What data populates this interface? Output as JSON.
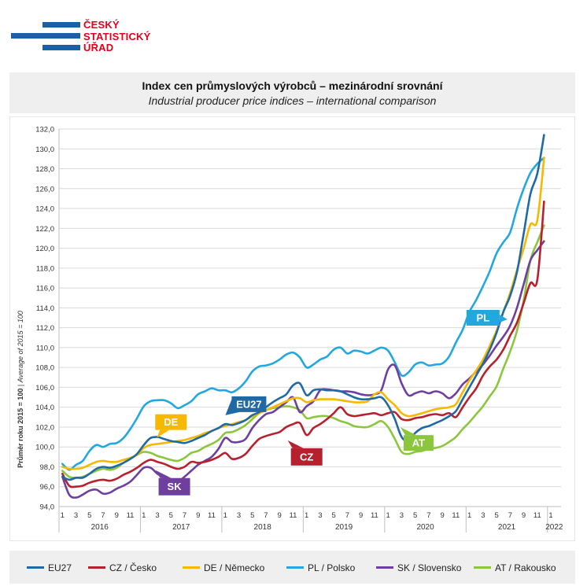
{
  "logo": {
    "line1": "ČESKÝ",
    "line2": "STATISTICKÝ",
    "line3": "ÚŘAD",
    "color_text": "#e2001a",
    "color_bars": "#1b5fa5"
  },
  "chart_data": {
    "type": "line",
    "title": "Index cen průmyslových výrobců – mezinárodní srovnání",
    "subtitle": "Industrial producer price indices – international comparison",
    "ylabel": "Průměr roku 2015 = 100",
    "ylabel_en": "Average of 2015 = 100",
    "ylabel_sep": " | ",
    "ylim": [
      94,
      132
    ],
    "yticks": [
      94,
      96,
      98,
      100,
      102,
      104,
      106,
      108,
      110,
      112,
      114,
      116,
      118,
      120,
      122,
      124,
      126,
      128,
      130,
      132
    ],
    "yticks_labels": [
      "94,0",
      "96,0",
      "98,0",
      "100,0",
      "102,0",
      "104,0",
      "106,0",
      "108,0",
      "110,0",
      "112,0",
      "114,0",
      "116,0",
      "118,0",
      "120,0",
      "122,0",
      "124,0",
      "126,0",
      "128,0",
      "130,0",
      "132,0"
    ],
    "month_ticks": [
      "1",
      "3",
      "5",
      "7",
      "9",
      "11"
    ],
    "years": [
      "2016",
      "2017",
      "2018",
      "2019",
      "2020",
      "2021",
      "2022"
    ],
    "x_start": "2016-01",
    "grid": "horizontal",
    "legend_position": "bottom",
    "series": [
      {
        "name": "EU27",
        "legend": "EU27",
        "color": "#1f6aa5",
        "values": [
          97.0,
          96.7,
          96.9,
          96.9,
          97.3,
          97.8,
          98.0,
          97.9,
          98.1,
          98.4,
          98.8,
          99.3,
          100.2,
          100.9,
          101.0,
          100.8,
          100.6,
          100.5,
          100.4,
          100.6,
          100.9,
          101.2,
          101.6,
          101.9,
          102.3,
          102.2,
          102.4,
          102.7,
          103.2,
          103.5,
          104.0,
          104.5,
          104.9,
          105.3,
          106.2,
          106.4,
          105.2,
          105.7,
          105.8,
          105.7,
          105.7,
          105.6,
          105.3,
          105.0,
          104.8,
          104.8,
          104.9,
          105.0,
          104.2,
          102.8,
          101.0,
          100.6,
          101.4,
          101.9,
          102.1,
          102.4,
          102.7,
          103.1,
          103.6,
          104.8,
          106.0,
          107.2,
          108.4,
          109.8,
          111.5,
          113.6,
          115.2,
          117.6,
          121.5,
          125.5,
          127.5,
          131.4
        ]
      },
      {
        "name": "CZ / Česko",
        "legend": "CZ / Česko",
        "color": "#b7212d",
        "values": [
          97.3,
          96.1,
          96.0,
          96.1,
          96.4,
          96.6,
          96.7,
          96.6,
          96.8,
          97.2,
          97.5,
          97.9,
          98.4,
          98.7,
          98.5,
          98.3,
          98.0,
          97.8,
          98.0,
          98.5,
          98.4,
          98.5,
          98.7,
          99.0,
          99.4,
          98.8,
          98.9,
          99.3,
          100.1,
          100.8,
          101.1,
          101.3,
          101.5,
          102.0,
          102.3,
          102.4,
          101.2,
          101.9,
          102.3,
          102.8,
          103.4,
          104.0,
          103.3,
          103.1,
          103.2,
          103.3,
          103.4,
          103.2,
          103.4,
          103.5,
          102.8,
          102.7,
          102.9,
          103.0,
          103.2,
          103.3,
          103.2,
          103.4,
          103.0,
          104.0,
          105.0,
          105.9,
          107.2,
          108.1,
          108.8,
          109.8,
          111.2,
          112.5,
          114.5,
          116.5,
          116.8,
          124.7
        ]
      },
      {
        "name": "DE / Německo",
        "legend": "DE / Německo",
        "color": "#f7b900",
        "values": [
          98.0,
          97.8,
          97.8,
          97.9,
          98.2,
          98.5,
          98.6,
          98.5,
          98.5,
          98.7,
          98.9,
          99.2,
          99.9,
          100.2,
          100.3,
          100.4,
          100.5,
          100.6,
          100.7,
          100.9,
          101.1,
          101.4,
          101.6,
          101.9,
          102.1,
          102.3,
          102.5,
          102.7,
          103.1,
          103.4,
          103.7,
          104.0,
          104.3,
          104.6,
          104.9,
          104.9,
          104.5,
          104.7,
          104.8,
          104.8,
          104.8,
          104.7,
          104.6,
          104.5,
          104.5,
          104.6,
          105.3,
          105.5,
          104.8,
          104.2,
          103.4,
          103.1,
          103.2,
          103.4,
          103.6,
          103.8,
          103.9,
          104.0,
          104.3,
          105.5,
          106.7,
          107.7,
          108.8,
          110.2,
          111.7,
          113.6,
          115.5,
          117.8,
          120.0,
          122.4,
          122.8,
          129.1
        ]
      },
      {
        "name": "PL / Polsko",
        "legend": "PL / Polsko",
        "color": "#22a8de",
        "values": [
          98.3,
          97.7,
          98.2,
          98.6,
          99.6,
          100.2,
          100.0,
          100.3,
          100.4,
          100.9,
          101.8,
          102.9,
          104.1,
          104.6,
          104.7,
          104.7,
          104.4,
          103.9,
          104.2,
          104.6,
          105.3,
          105.6,
          105.9,
          105.7,
          105.7,
          105.5,
          105.9,
          106.6,
          107.6,
          108.1,
          108.2,
          108.4,
          108.8,
          109.3,
          109.5,
          109.0,
          108.0,
          108.3,
          108.8,
          109.1,
          109.8,
          110.0,
          109.4,
          109.7,
          109.6,
          109.4,
          109.7,
          110.0,
          109.7,
          108.5,
          107.2,
          107.5,
          108.3,
          108.5,
          108.2,
          108.3,
          108.4,
          109.1,
          110.5,
          111.8,
          113.6,
          114.8,
          116.2,
          117.7,
          119.5,
          120.6,
          121.6,
          124.0,
          126.0,
          127.6,
          128.5,
          129.1
        ]
      },
      {
        "name": "SK / Slovensko",
        "legend": "SK / Slovensko",
        "color": "#6f3fa0",
        "values": [
          97.0,
          95.2,
          94.9,
          95.2,
          95.6,
          95.7,
          95.3,
          95.4,
          95.8,
          96.1,
          96.5,
          97.2,
          97.9,
          97.9,
          97.3,
          96.9,
          96.7,
          96.5,
          97.0,
          97.6,
          98.2,
          98.6,
          99.0,
          99.8,
          100.9,
          100.5,
          100.5,
          100.8,
          101.9,
          102.7,
          103.3,
          103.5,
          104.0,
          104.5,
          105.0,
          103.5,
          104.1,
          104.6,
          105.7,
          105.8,
          105.7,
          105.6,
          105.6,
          105.5,
          105.3,
          105.2,
          105.3,
          105.7,
          107.8,
          108.2,
          106.4,
          105.2,
          105.4,
          105.6,
          105.4,
          105.6,
          105.4,
          104.9,
          105.4,
          106.3,
          106.9,
          107.6,
          108.3,
          109.2,
          110.2,
          111.1,
          112.2,
          114.0,
          116.4,
          118.8,
          119.8,
          120.7
        ]
      },
      {
        "name": "AT / Rakousko",
        "legend": "AT / Rakousko",
        "color": "#8cc63f",
        "values": [
          97.6,
          97.0,
          96.9,
          97.0,
          97.3,
          97.6,
          97.8,
          97.7,
          97.9,
          98.4,
          98.8,
          99.2,
          99.5,
          99.4,
          99.1,
          98.9,
          98.7,
          98.6,
          98.9,
          99.4,
          99.6,
          100.0,
          100.3,
          100.7,
          101.4,
          101.5,
          101.8,
          102.2,
          102.8,
          103.4,
          103.7,
          103.9,
          104.0,
          104.1,
          104.0,
          103.7,
          102.9,
          103.0,
          103.1,
          103.1,
          102.9,
          102.6,
          102.4,
          102.1,
          102.0,
          102.0,
          102.3,
          102.6,
          102.0,
          100.8,
          99.5,
          99.3,
          99.5,
          99.6,
          99.8,
          99.9,
          100.1,
          100.5,
          101.0,
          101.8,
          102.5,
          103.3,
          104.1,
          105.1,
          106.1,
          107.9,
          109.6,
          111.7,
          114.8,
          118.8,
          120.6,
          122.3
        ]
      }
    ]
  },
  "callouts": {
    "eu27": "EU27",
    "de": "DE",
    "pl": "PL",
    "cz": "CZ",
    "sk": "SK",
    "at": "AT"
  }
}
